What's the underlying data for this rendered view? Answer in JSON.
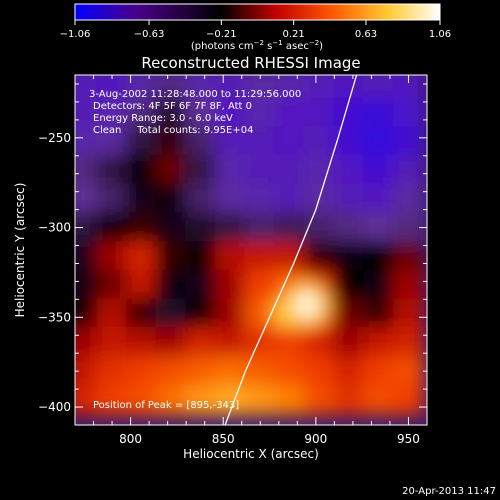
{
  "chart_data": {
    "type": "heatmap",
    "title": "Reconstructed RHESSI Image",
    "xlabel": "Heliocentric X (arcsec)",
    "ylabel": "Heliocentric Y (arcsec)",
    "xlim": [
      770,
      960
    ],
    "ylim": [
      -410,
      -215
    ],
    "xticks": [
      800,
      850,
      900,
      950
    ],
    "yticks": [
      -250,
      -300,
      -350,
      -400
    ],
    "grid": false,
    "colorbar": {
      "title": "(photons cm-2 s-1 asec-2)",
      "range": [
        -1.06,
        1.06
      ],
      "ticks": [
        "-1.06",
        "-0.63",
        "-0.21",
        "0.21",
        "0.63",
        "1.06"
      ],
      "colors": [
        "#0000ff",
        "#4b0088",
        "#000000",
        "#c00000",
        "#ff5500",
        "#ffcc33",
        "#ffffff"
      ]
    },
    "annotations": [
      "3-Aug-2002 11:28:48.000 to 11:29:56.000",
      "Detectors: 4F 5F 6F 7F 8F, Att 0",
      "Energy Range: 3.0 - 6.0 keV",
      "Clean     Total counts: 9.95E+04",
      "Position of Peak = [895,-343]"
    ],
    "peak": {
      "x": 895,
      "y": -343
    },
    "limb_curve": {
      "x": [
        851,
        862,
        875,
        888,
        900,
        912,
        922
      ],
      "y": [
        -410,
        -380,
        -350,
        -320,
        -290,
        -250,
        -215
      ]
    },
    "intensity_grid": {
      "x": [
        774,
        790,
        806,
        822,
        838,
        854,
        870,
        886,
        902,
        918,
        934,
        950
      ],
      "y": [
        -220,
        -236,
        -252,
        -268,
        -284,
        -300,
        -316,
        -332,
        -348,
        -364,
        -380,
        -396
      ],
      "z": [
        [
          -0.55,
          -0.6,
          -0.5,
          -0.35,
          -0.5,
          -0.55,
          -0.45,
          -0.5,
          -0.55,
          -0.6,
          -0.55,
          -0.6
        ],
        [
          -0.55,
          -0.5,
          -0.35,
          -0.15,
          -0.4,
          -0.6,
          -0.5,
          -0.6,
          -0.6,
          -0.7,
          -0.75,
          -0.65
        ],
        [
          -0.5,
          -0.45,
          -0.2,
          0.1,
          -0.3,
          -0.55,
          -0.55,
          -0.6,
          -0.55,
          -0.7,
          -0.8,
          -0.7
        ],
        [
          -0.35,
          -0.2,
          0.05,
          0.15,
          -0.2,
          -0.5,
          -0.55,
          -0.55,
          -0.5,
          -0.6,
          -0.7,
          -0.55
        ],
        [
          -0.4,
          -0.3,
          -0.1,
          0.0,
          -0.3,
          -0.45,
          -0.5,
          -0.55,
          -0.45,
          -0.55,
          -0.6,
          -0.45
        ],
        [
          -0.2,
          0.05,
          0.1,
          -0.1,
          -0.15,
          -0.2,
          -0.3,
          -0.25,
          -0.3,
          -0.35,
          -0.4,
          -0.35
        ],
        [
          -0.1,
          0.2,
          0.35,
          0.1,
          0.05,
          0.25,
          0.3,
          0.3,
          0.1,
          -0.05,
          0.05,
          0.15
        ],
        [
          -0.05,
          0.15,
          0.3,
          0.0,
          -0.1,
          0.2,
          0.45,
          0.55,
          0.35,
          0.05,
          0.0,
          0.2
        ],
        [
          0.05,
          0.25,
          0.1,
          -0.15,
          0.05,
          0.2,
          0.55,
          0.85,
          0.5,
          0.15,
          0.1,
          0.25
        ],
        [
          0.2,
          0.3,
          0.25,
          0.2,
          0.35,
          0.3,
          0.4,
          0.45,
          0.35,
          0.2,
          0.3,
          0.35
        ],
        [
          0.3,
          0.4,
          0.45,
          0.5,
          0.55,
          0.6,
          0.55,
          0.5,
          0.45,
          0.35,
          0.45,
          0.5
        ],
        [
          0.35,
          0.45,
          0.5,
          0.6,
          0.7,
          0.75,
          0.7,
          0.65,
          0.5,
          0.4,
          0.5,
          0.45
        ]
      ]
    }
  },
  "footer_timestamp": "20-Apr-2013 11:47"
}
